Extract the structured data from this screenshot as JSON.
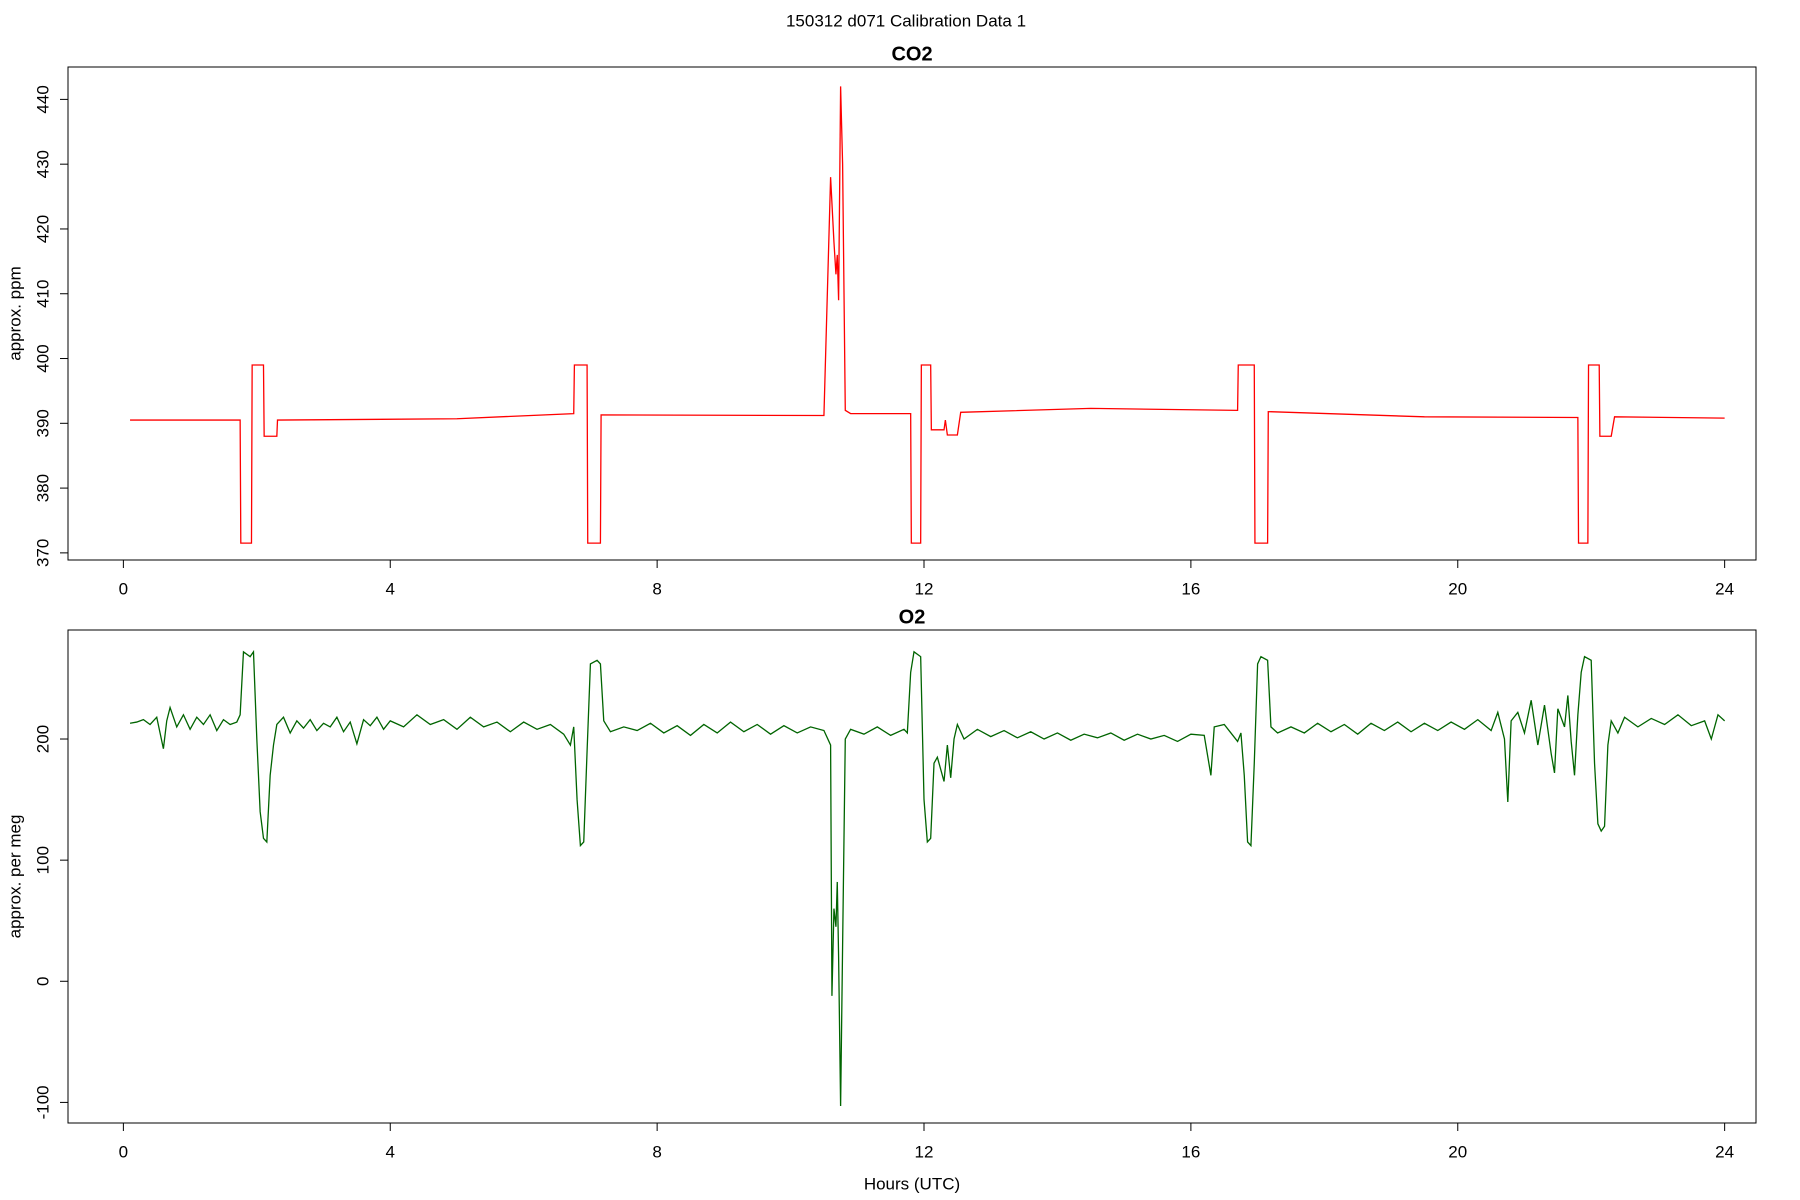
{
  "title": "150312   d071   Calibration Data 1",
  "chart_data": [
    {
      "type": "line",
      "title": "CO2",
      "ylabel": "approx. ppm",
      "color": "#ff0000",
      "x": [
        0.1,
        1.75,
        1.76,
        1.92,
        1.93,
        2.1,
        2.11,
        2.3,
        2.31,
        5.0,
        6.75,
        6.76,
        6.95,
        6.96,
        7.15,
        7.16,
        10.5,
        10.6,
        10.65,
        10.68,
        10.7,
        10.72,
        10.75,
        10.78,
        10.82,
        10.9,
        11.8,
        11.81,
        11.95,
        11.96,
        12.1,
        12.11,
        12.3,
        12.32,
        12.35,
        12.5,
        12.55,
        14.5,
        16.7,
        16.71,
        16.95,
        16.96,
        17.15,
        17.16,
        19.5,
        21.8,
        21.81,
        21.95,
        21.96,
        22.12,
        22.13,
        22.3,
        22.35,
        24.0
      ],
      "values": [
        390.5,
        390.5,
        371.5,
        371.5,
        399,
        399,
        388,
        388,
        390.5,
        390.7,
        391.5,
        399,
        399,
        371.5,
        371.5,
        391.3,
        391.2,
        428,
        418,
        413,
        416,
        409,
        442,
        430,
        392,
        391.5,
        391.5,
        371.5,
        371.5,
        399,
        399,
        389,
        389,
        390.5,
        388.2,
        388.2,
        391.7,
        392.3,
        392,
        399,
        399,
        371.5,
        371.5,
        391.8,
        391,
        390.9,
        371.5,
        371.5,
        399,
        399,
        388,
        388,
        391,
        390.8
      ],
      "xlim": [
        -0.83,
        24.47
      ],
      "xticks": [
        0,
        4,
        8,
        12,
        16,
        20,
        24
      ],
      "ylim": [
        368.9,
        445
      ],
      "yticks": [
        370,
        380,
        390,
        400,
        410,
        420,
        430,
        440
      ]
    },
    {
      "type": "line",
      "title": "O2",
      "ylabel": "approx. per meg",
      "xlabel": "Hours (UTC)",
      "color": "#006400",
      "x": [
        0.1,
        0.2,
        0.3,
        0.4,
        0.5,
        0.55,
        0.6,
        0.65,
        0.7,
        0.8,
        0.9,
        1.0,
        1.1,
        1.2,
        1.3,
        1.4,
        1.5,
        1.6,
        1.7,
        1.75,
        1.8,
        1.9,
        1.95,
        2.0,
        2.05,
        2.1,
        2.15,
        2.2,
        2.25,
        2.3,
        2.4,
        2.5,
        2.6,
        2.7,
        2.8,
        2.9,
        3.0,
        3.1,
        3.2,
        3.3,
        3.4,
        3.5,
        3.6,
        3.7,
        3.8,
        3.9,
        4.0,
        4.2,
        4.4,
        4.6,
        4.8,
        5.0,
        5.2,
        5.4,
        5.6,
        5.8,
        6.0,
        6.2,
        6.4,
        6.6,
        6.7,
        6.75,
        6.8,
        6.85,
        6.9,
        6.95,
        7.0,
        7.1,
        7.15,
        7.2,
        7.3,
        7.5,
        7.7,
        7.9,
        8.1,
        8.3,
        8.5,
        8.7,
        8.9,
        9.1,
        9.3,
        9.5,
        9.7,
        9.9,
        10.1,
        10.3,
        10.5,
        10.6,
        10.62,
        10.65,
        10.68,
        10.7,
        10.72,
        10.75,
        10.78,
        10.82,
        10.9,
        11.1,
        11.3,
        11.5,
        11.7,
        11.75,
        11.8,
        11.85,
        11.95,
        12.0,
        12.05,
        12.1,
        12.15,
        12.2,
        12.3,
        12.35,
        12.4,
        12.45,
        12.5,
        12.6,
        12.8,
        13.0,
        13.2,
        13.4,
        13.6,
        13.8,
        14.0,
        14.2,
        14.4,
        14.6,
        14.8,
        15.0,
        15.2,
        15.4,
        15.6,
        15.8,
        16.0,
        16.2,
        16.3,
        16.35,
        16.5,
        16.6,
        16.7,
        16.75,
        16.8,
        16.85,
        16.9,
        16.95,
        17.0,
        17.05,
        17.15,
        17.2,
        17.3,
        17.5,
        17.7,
        17.9,
        18.1,
        18.3,
        18.5,
        18.7,
        18.9,
        19.1,
        19.3,
        19.5,
        19.7,
        19.9,
        20.1,
        20.3,
        20.5,
        20.6,
        20.7,
        20.75,
        20.8,
        20.9,
        21.0,
        21.1,
        21.2,
        21.3,
        21.4,
        21.45,
        21.5,
        21.6,
        21.65,
        21.7,
        21.75,
        21.8,
        21.85,
        21.9,
        22.0,
        22.05,
        22.1,
        22.15,
        22.2,
        22.25,
        22.3,
        22.4,
        22.5,
        22.7,
        22.9,
        23.1,
        23.3,
        23.5,
        23.7,
        23.8,
        23.9,
        24.0
      ],
      "values": [
        213,
        214,
        216,
        212,
        218,
        205,
        192,
        215,
        226,
        210,
        220,
        208,
        218,
        212,
        220,
        207,
        216,
        212,
        214,
        220,
        272,
        268,
        272,
        200,
        140,
        118,
        115,
        170,
        195,
        212,
        218,
        205,
        215,
        209,
        216,
        207,
        213,
        210,
        218,
        206,
        214,
        196,
        216,
        211,
        218,
        208,
        215,
        210,
        220,
        212,
        216,
        208,
        218,
        210,
        214,
        206,
        214,
        208,
        212,
        204,
        195,
        210,
        150,
        112,
        115,
        190,
        262,
        265,
        262,
        215,
        206,
        210,
        207,
        213,
        205,
        211,
        203,
        212,
        205,
        214,
        206,
        212,
        204,
        211,
        205,
        210,
        207,
        195,
        -12,
        60,
        45,
        82,
        20,
        -103,
        30,
        200,
        208,
        204,
        210,
        203,
        208,
        205,
        255,
        272,
        268,
        150,
        115,
        118,
        180,
        185,
        165,
        195,
        168,
        200,
        212,
        200,
        208,
        202,
        207,
        201,
        206,
        200,
        205,
        199,
        204,
        201,
        205,
        199,
        204,
        200,
        203,
        198,
        204,
        203,
        170,
        210,
        212,
        205,
        198,
        205,
        170,
        115,
        112,
        180,
        262,
        268,
        265,
        210,
        205,
        210,
        205,
        213,
        206,
        212,
        204,
        213,
        207,
        214,
        206,
        213,
        207,
        214,
        208,
        216,
        207,
        222,
        200,
        148,
        215,
        222,
        205,
        232,
        195,
        228,
        188,
        172,
        225,
        210,
        236,
        198,
        170,
        220,
        255,
        268,
        265,
        180,
        130,
        124,
        128,
        195,
        215,
        205,
        218,
        210,
        217,
        212,
        220,
        211,
        215,
        200,
        220,
        215
      ],
      "xlim": [
        -0.83,
        24.47
      ],
      "xticks": [
        0,
        4,
        8,
        12,
        16,
        20,
        24
      ],
      "ylim": [
        -117,
        290
      ],
      "yticks": [
        -100,
        0,
        100,
        200
      ]
    }
  ]
}
